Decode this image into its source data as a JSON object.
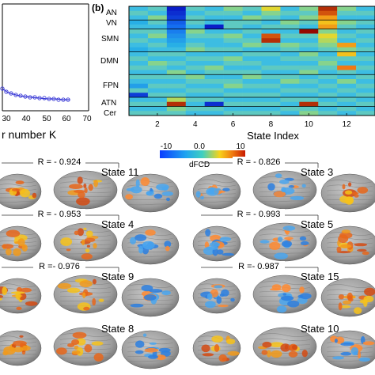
{
  "panel_a": {
    "xlabel": "r number K",
    "x_ticks": [
      "30",
      "40",
      "50",
      "60",
      "70"
    ]
  },
  "panel_b": {
    "label": "(b)",
    "xlabel": "State Index",
    "network_labels": [
      "AN",
      "VN",
      "SMN",
      "DMN",
      "FPN",
      "ATN",
      "Cer"
    ],
    "colorbar": {
      "label": "dFCD",
      "tick_labels": [
        "-10",
        "0.0",
        "10"
      ]
    }
  },
  "brain_panels": [
    {
      "state": "State 11",
      "r": "R = - 0.924"
    },
    {
      "state": "State 3",
      "r": "R = - 0.826"
    },
    {
      "state": "State 4",
      "r": "R = - 0.953"
    },
    {
      "state": "State 5",
      "r": "R = - 0.993"
    },
    {
      "state": "State 9",
      "r": "R =- 0.976"
    },
    {
      "state": "State 15",
      "r": "R =- 0.987"
    },
    {
      "state": "State 8",
      "r": ""
    },
    {
      "state": "State 10",
      "r": ""
    }
  ],
  "chart_data": {
    "type": "heatmap",
    "xlabel": "State Index",
    "x_tick_labels": [
      "2",
      "4",
      "6",
      "8",
      "10",
      "12"
    ],
    "y_labels": [
      "AN",
      "VN",
      "SMN",
      "DMN",
      "FPN",
      "ATN",
      "Cer"
    ],
    "colorbar_label": "dFCD",
    "color_range": [
      -10,
      10
    ],
    "colorbar_ticks": [
      "-10",
      "0.0",
      "10"
    ],
    "columns": 13,
    "rows": 24,
    "values": [
      [
        0,
        1,
        -10,
        1,
        0,
        2,
        1,
        4,
        0,
        2,
        9,
        2,
        0
      ],
      [
        1,
        0,
        -9,
        0,
        1,
        1,
        0,
        2,
        1,
        1,
        8,
        1,
        1
      ],
      [
        0,
        2,
        -8,
        1,
        0,
        0,
        2,
        1,
        0,
        2,
        6,
        0,
        0
      ],
      [
        -1,
        1,
        -6,
        1,
        0,
        1,
        1,
        0,
        2,
        1,
        5,
        2,
        1
      ],
      [
        0,
        0,
        -5,
        0,
        -10,
        1,
        0,
        1,
        1,
        0,
        6,
        1,
        0
      ],
      [
        1,
        1,
        -4,
        2,
        0,
        0,
        1,
        0,
        0,
        11,
        2,
        0,
        1
      ],
      [
        0,
        2,
        -3,
        1,
        1,
        2,
        0,
        8,
        1,
        1,
        4,
        1,
        0
      ],
      [
        1,
        0,
        -2,
        0,
        0,
        1,
        1,
        9,
        0,
        0,
        3,
        0,
        1
      ],
      [
        0,
        1,
        -1,
        1,
        0,
        0,
        2,
        1,
        2,
        1,
        2,
        6,
        0
      ],
      [
        -1,
        0,
        0,
        2,
        1,
        1,
        0,
        0,
        1,
        0,
        1,
        2,
        1
      ],
      [
        0,
        1,
        1,
        0,
        0,
        0,
        1,
        1,
        0,
        2,
        0,
        5,
        0
      ],
      [
        1,
        0,
        0,
        1,
        1,
        2,
        0,
        0,
        1,
        1,
        1,
        1,
        1
      ],
      [
        0,
        2,
        1,
        0,
        0,
        1,
        1,
        0,
        0,
        0,
        2,
        0,
        0
      ],
      [
        1,
        1,
        0,
        1,
        2,
        0,
        0,
        1,
        1,
        1,
        1,
        7,
        1
      ],
      [
        0,
        0,
        2,
        0,
        1,
        1,
        1,
        0,
        0,
        2,
        0,
        1,
        0
      ],
      [
        1,
        1,
        1,
        2,
        0,
        0,
        2,
        1,
        1,
        0,
        1,
        0,
        1
      ],
      [
        0,
        0,
        0,
        1,
        1,
        1,
        0,
        0,
        2,
        1,
        0,
        2,
        0
      ],
      [
        -2,
        1,
        1,
        0,
        0,
        2,
        1,
        1,
        0,
        0,
        1,
        0,
        1
      ],
      [
        1,
        0,
        0,
        1,
        1,
        0,
        0,
        0,
        1,
        1,
        0,
        1,
        0
      ],
      [
        -8,
        1,
        1,
        0,
        0,
        1,
        1,
        1,
        0,
        0,
        1,
        0,
        1
      ],
      [
        0,
        0,
        3,
        1,
        1,
        0,
        0,
        0,
        1,
        1,
        0,
        1,
        0
      ],
      [
        1,
        1,
        9,
        0,
        -9,
        1,
        1,
        1,
        0,
        9,
        1,
        0,
        1
      ],
      [
        0,
        0,
        2,
        1,
        1,
        0,
        0,
        0,
        1,
        1,
        0,
        1,
        0
      ],
      [
        1,
        1,
        1,
        0,
        0,
        1,
        1,
        1,
        0,
        2,
        1,
        0,
        1
      ]
    ]
  }
}
